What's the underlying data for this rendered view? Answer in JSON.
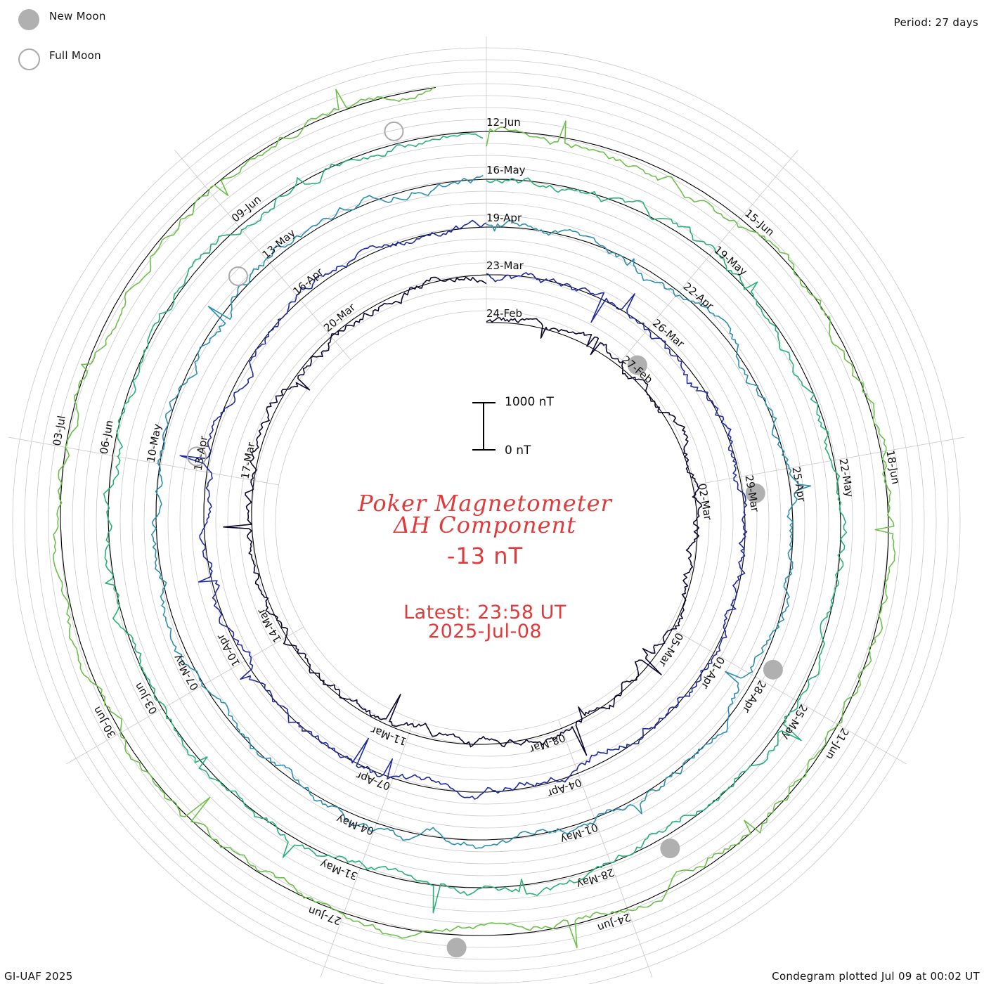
{
  "header": {
    "legend_new_moon": "New Moon",
    "legend_full_moon": "Full Moon",
    "period": "Period: 27 days"
  },
  "footer": {
    "credit": "GI-UAF 2025",
    "plotted": "Condegram plotted Jul 09 at 00:02 UT"
  },
  "center": {
    "title_line1": "Poker Magnetometer",
    "title_line2": "ΔH Component",
    "current_value": "-13 nT",
    "latest_line": "Latest: 23:58 UT",
    "latest_date": "2025-Jul-08",
    "scale_top": "1000 nT",
    "scale_bottom": "0 nT"
  },
  "colors": {
    "title": "#e03a3a",
    "moon_new": "#b0b0b0",
    "moon_full": "#aaaaaa",
    "grid": "#c8c8c8",
    "baseline": "#000000"
  },
  "chart_data": {
    "type": "line",
    "subtype": "condegram-spiral",
    "period_days": 27,
    "scale_nT": 1000,
    "current_nT": -13,
    "start_date": "2025-Feb-24",
    "end_date": "2025-Jul-08",
    "date_labels": [
      {
        "label": "24-Feb",
        "day": 0
      },
      {
        "label": "27-Feb",
        "day": 3
      },
      {
        "label": "02-Mar",
        "day": 6
      },
      {
        "label": "05-Mar",
        "day": 9
      },
      {
        "label": "08-Mar",
        "day": 12
      },
      {
        "label": "11-Mar",
        "day": 15
      },
      {
        "label": "14-Mar",
        "day": 18
      },
      {
        "label": "17-Mar",
        "day": 21
      },
      {
        "label": "20-Mar",
        "day": 24
      },
      {
        "label": "23-Mar",
        "day": 27
      },
      {
        "label": "26-Mar",
        "day": 30
      },
      {
        "label": "29-Mar",
        "day": 33
      },
      {
        "label": "01-Apr",
        "day": 36
      },
      {
        "label": "04-Apr",
        "day": 39
      },
      {
        "label": "07-Apr",
        "day": 42
      },
      {
        "label": "10-Apr",
        "day": 45
      },
      {
        "label": "13-Apr",
        "day": 48
      },
      {
        "label": "16-Apr",
        "day": 51
      },
      {
        "label": "19-Apr",
        "day": 54
      },
      {
        "label": "22-Apr",
        "day": 57
      },
      {
        "label": "25-Apr",
        "day": 60
      },
      {
        "label": "28-Apr",
        "day": 63
      },
      {
        "label": "01-May",
        "day": 66
      },
      {
        "label": "04-May",
        "day": 69
      },
      {
        "label": "07-May",
        "day": 72
      },
      {
        "label": "10-May",
        "day": 75
      },
      {
        "label": "13-May",
        "day": 78
      },
      {
        "label": "16-May",
        "day": 81
      },
      {
        "label": "19-May",
        "day": 84
      },
      {
        "label": "22-May",
        "day": 87
      },
      {
        "label": "25-May",
        "day": 90
      },
      {
        "label": "28-May",
        "day": 93
      },
      {
        "label": "31-May",
        "day": 96
      },
      {
        "label": "03-Jun",
        "day": 99
      },
      {
        "label": "06-Jun",
        "day": 102
      },
      {
        "label": "09-Jun",
        "day": 105
      },
      {
        "label": "12-Jun",
        "day": 108
      },
      {
        "label": "15-Jun",
        "day": 111
      },
      {
        "label": "18-Jun",
        "day": 114
      },
      {
        "label": "21-Jun",
        "day": 117
      },
      {
        "label": "24-Jun",
        "day": 120
      },
      {
        "label": "27-Jun",
        "day": 123
      },
      {
        "label": "30-Jun",
        "day": 126
      },
      {
        "label": "03-Jul",
        "day": 129
      }
    ],
    "new_moons_day": [
      3.3,
      33.3,
      62.8,
      92.3,
      121.8
    ],
    "full_moons_day": [
      48.2,
      77.6,
      107.0
    ],
    "series": [
      {
        "color": "#0d0630"
      },
      {
        "color": "#1f2a9e"
      },
      {
        "color": "#2c8fb0"
      },
      {
        "color": "#27b07a"
      },
      {
        "color": "#6cc04a"
      },
      {
        "color": "#9fc020"
      },
      {
        "color": "#c8951a"
      },
      {
        "color": "#c05a12"
      },
      {
        "color": "#b81010"
      }
    ]
  }
}
